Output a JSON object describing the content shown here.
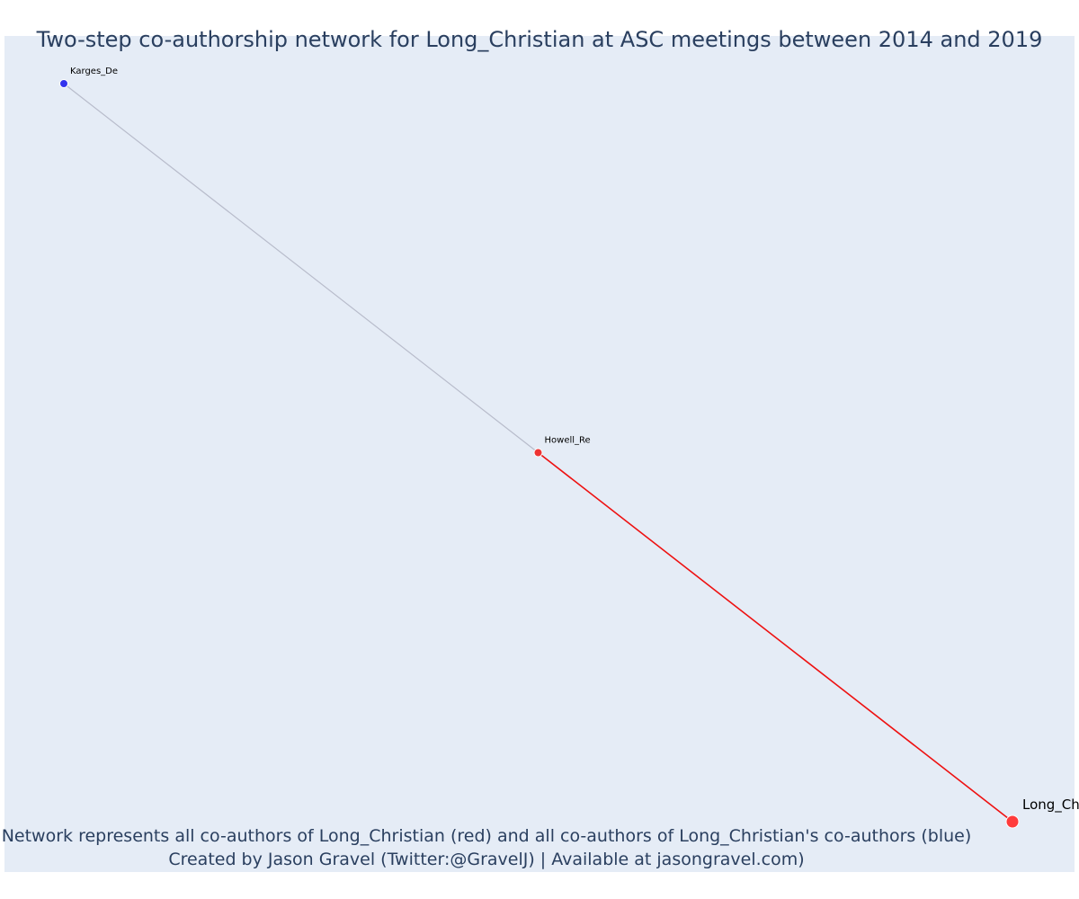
{
  "title": "Two-step co-authorship network for Long_Christian at ASC meetings between 2014 and 2019",
  "caption": {
    "line1": "Network represents all co-authors of Long_Christian (red) and all co-authors of Long_Christian's co-authors (blue)",
    "line2": "Created by Jason Gravel (Twitter:@GravelJ) | Available at jasongravel.com)"
  },
  "colors": {
    "plot_background": "#e5ecf6",
    "focal": "#ff3b3b",
    "coauthor": "#ee3333",
    "second_step": "#3333ee",
    "edge_focal": "#ee1111",
    "edge_other": "#b8bccb",
    "text": "#2a3f5f"
  },
  "chart_data": {
    "type": "network",
    "nodes": [
      {
        "id": "Karges_De",
        "label": "Karges_De",
        "group": "second_step",
        "x": 0.0,
        "y": 1.0,
        "size": "small"
      },
      {
        "id": "Howell_Re",
        "label": "Howell_Re",
        "group": "coauthor",
        "x": 0.5,
        "y": 0.5,
        "size": "small"
      },
      {
        "id": "Long_Christian",
        "label": "Long_Ch",
        "group": "focal",
        "x": 1.0,
        "y": 0.0,
        "size": "large"
      }
    ],
    "edges": [
      {
        "source": "Karges_De",
        "target": "Howell_Re",
        "type": "other"
      },
      {
        "source": "Howell_Re",
        "target": "Long_Christian",
        "type": "focal"
      }
    ],
    "xlim": [
      0,
      1
    ],
    "ylim": [
      0,
      1
    ],
    "grid": false
  }
}
